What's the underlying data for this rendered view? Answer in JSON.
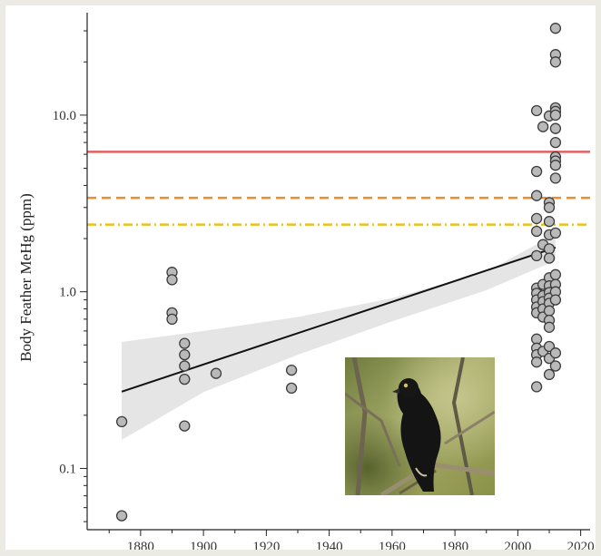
{
  "chart_data": {
    "type": "scatter",
    "title": "",
    "xlabel": "",
    "ylabel": "Body Feather MeHg (ppm)",
    "x_ticks": [
      1880,
      1900,
      1920,
      1940,
      1960,
      1980,
      2000,
      2020
    ],
    "y_ticks": [
      {
        "value": 0.1,
        "label": "0.1"
      },
      {
        "value": 1.0,
        "label": "1.0"
      },
      {
        "value": 10.0,
        "label": "10.0"
      }
    ],
    "xlim": [
      1863,
      2023
    ],
    "ylim": [
      0.045,
      38
    ],
    "y_scale": "log",
    "grid": false,
    "points": [
      {
        "x": 1874,
        "y": 0.184
      },
      {
        "x": 1874,
        "y": 0.054
      },
      {
        "x": 1890,
        "y": 1.29
      },
      {
        "x": 1890,
        "y": 1.17
      },
      {
        "x": 1890,
        "y": 0.76
      },
      {
        "x": 1890,
        "y": 0.7
      },
      {
        "x": 1894,
        "y": 0.51
      },
      {
        "x": 1894,
        "y": 0.44
      },
      {
        "x": 1894,
        "y": 0.38
      },
      {
        "x": 1894,
        "y": 0.32
      },
      {
        "x": 1894,
        "y": 0.174
      },
      {
        "x": 1904,
        "y": 0.345
      },
      {
        "x": 1928,
        "y": 0.36
      },
      {
        "x": 1928,
        "y": 0.285
      },
      {
        "x": 2006,
        "y": 10.6
      },
      {
        "x": 2006,
        "y": 4.8
      },
      {
        "x": 2006,
        "y": 3.5
      },
      {
        "x": 2006,
        "y": 2.6
      },
      {
        "x": 2006,
        "y": 2.2
      },
      {
        "x": 2006,
        "y": 1.6
      },
      {
        "x": 2006,
        "y": 1.05
      },
      {
        "x": 2006,
        "y": 0.98
      },
      {
        "x": 2006,
        "y": 0.9
      },
      {
        "x": 2006,
        "y": 0.82
      },
      {
        "x": 2006,
        "y": 0.76
      },
      {
        "x": 2006,
        "y": 0.54
      },
      {
        "x": 2006,
        "y": 0.48
      },
      {
        "x": 2006,
        "y": 0.44
      },
      {
        "x": 2006,
        "y": 0.4
      },
      {
        "x": 2006,
        "y": 0.29
      },
      {
        "x": 2008,
        "y": 8.6
      },
      {
        "x": 2008,
        "y": 1.85
      },
      {
        "x": 2008,
        "y": 1.1
      },
      {
        "x": 2008,
        "y": 0.95
      },
      {
        "x": 2008,
        "y": 0.88
      },
      {
        "x": 2008,
        "y": 0.8
      },
      {
        "x": 2008,
        "y": 0.72
      },
      {
        "x": 2008,
        "y": 0.46
      },
      {
        "x": 2010,
        "y": 9.9
      },
      {
        "x": 2010,
        "y": 3.2
      },
      {
        "x": 2010,
        "y": 3.0
      },
      {
        "x": 2010,
        "y": 2.5
      },
      {
        "x": 2010,
        "y": 2.1
      },
      {
        "x": 2010,
        "y": 1.75
      },
      {
        "x": 2010,
        "y": 1.55
      },
      {
        "x": 2010,
        "y": 1.2
      },
      {
        "x": 2010,
        "y": 1.08
      },
      {
        "x": 2010,
        "y": 0.99
      },
      {
        "x": 2010,
        "y": 0.92
      },
      {
        "x": 2010,
        "y": 0.86
      },
      {
        "x": 2010,
        "y": 0.78
      },
      {
        "x": 2010,
        "y": 0.69
      },
      {
        "x": 2010,
        "y": 0.63
      },
      {
        "x": 2010,
        "y": 0.49
      },
      {
        "x": 2010,
        "y": 0.42
      },
      {
        "x": 2010,
        "y": 0.34
      },
      {
        "x": 2012,
        "y": 31
      },
      {
        "x": 2012,
        "y": 22
      },
      {
        "x": 2012,
        "y": 20
      },
      {
        "x": 2012,
        "y": 11.0
      },
      {
        "x": 2012,
        "y": 10.5
      },
      {
        "x": 2012,
        "y": 10.0
      },
      {
        "x": 2012,
        "y": 8.4
      },
      {
        "x": 2012,
        "y": 7.0
      },
      {
        "x": 2012,
        "y": 5.8
      },
      {
        "x": 2012,
        "y": 5.5
      },
      {
        "x": 2012,
        "y": 5.2
      },
      {
        "x": 2012,
        "y": 4.4
      },
      {
        "x": 2012,
        "y": 2.15
      },
      {
        "x": 2012,
        "y": 1.25
      },
      {
        "x": 2012,
        "y": 1.1
      },
      {
        "x": 2012,
        "y": 1.0
      },
      {
        "x": 2012,
        "y": 0.9
      },
      {
        "x": 2012,
        "y": 0.45
      },
      {
        "x": 2012,
        "y": 0.38
      }
    ],
    "regression": {
      "x": [
        1874,
        2012
      ],
      "y": [
        0.272,
        1.78
      ]
    },
    "confidence_band": {
      "x": [
        1874,
        1900,
        1930,
        1960,
        1990,
        2012
      ],
      "upper": [
        0.52,
        0.6,
        0.72,
        0.92,
        1.3,
        2.12
      ],
      "lower": [
        0.145,
        0.27,
        0.44,
        0.68,
        1.02,
        1.5
      ]
    },
    "reference_lines": [
      {
        "y": 6.2,
        "style": "solid",
        "color": "#e06060"
      },
      {
        "y": 3.4,
        "style": "dashed",
        "color": "#f08a2a"
      },
      {
        "y": 2.4,
        "style": "dashdot",
        "color": "#e8c21a"
      }
    ],
    "inset_image": "blackbird-photo"
  }
}
